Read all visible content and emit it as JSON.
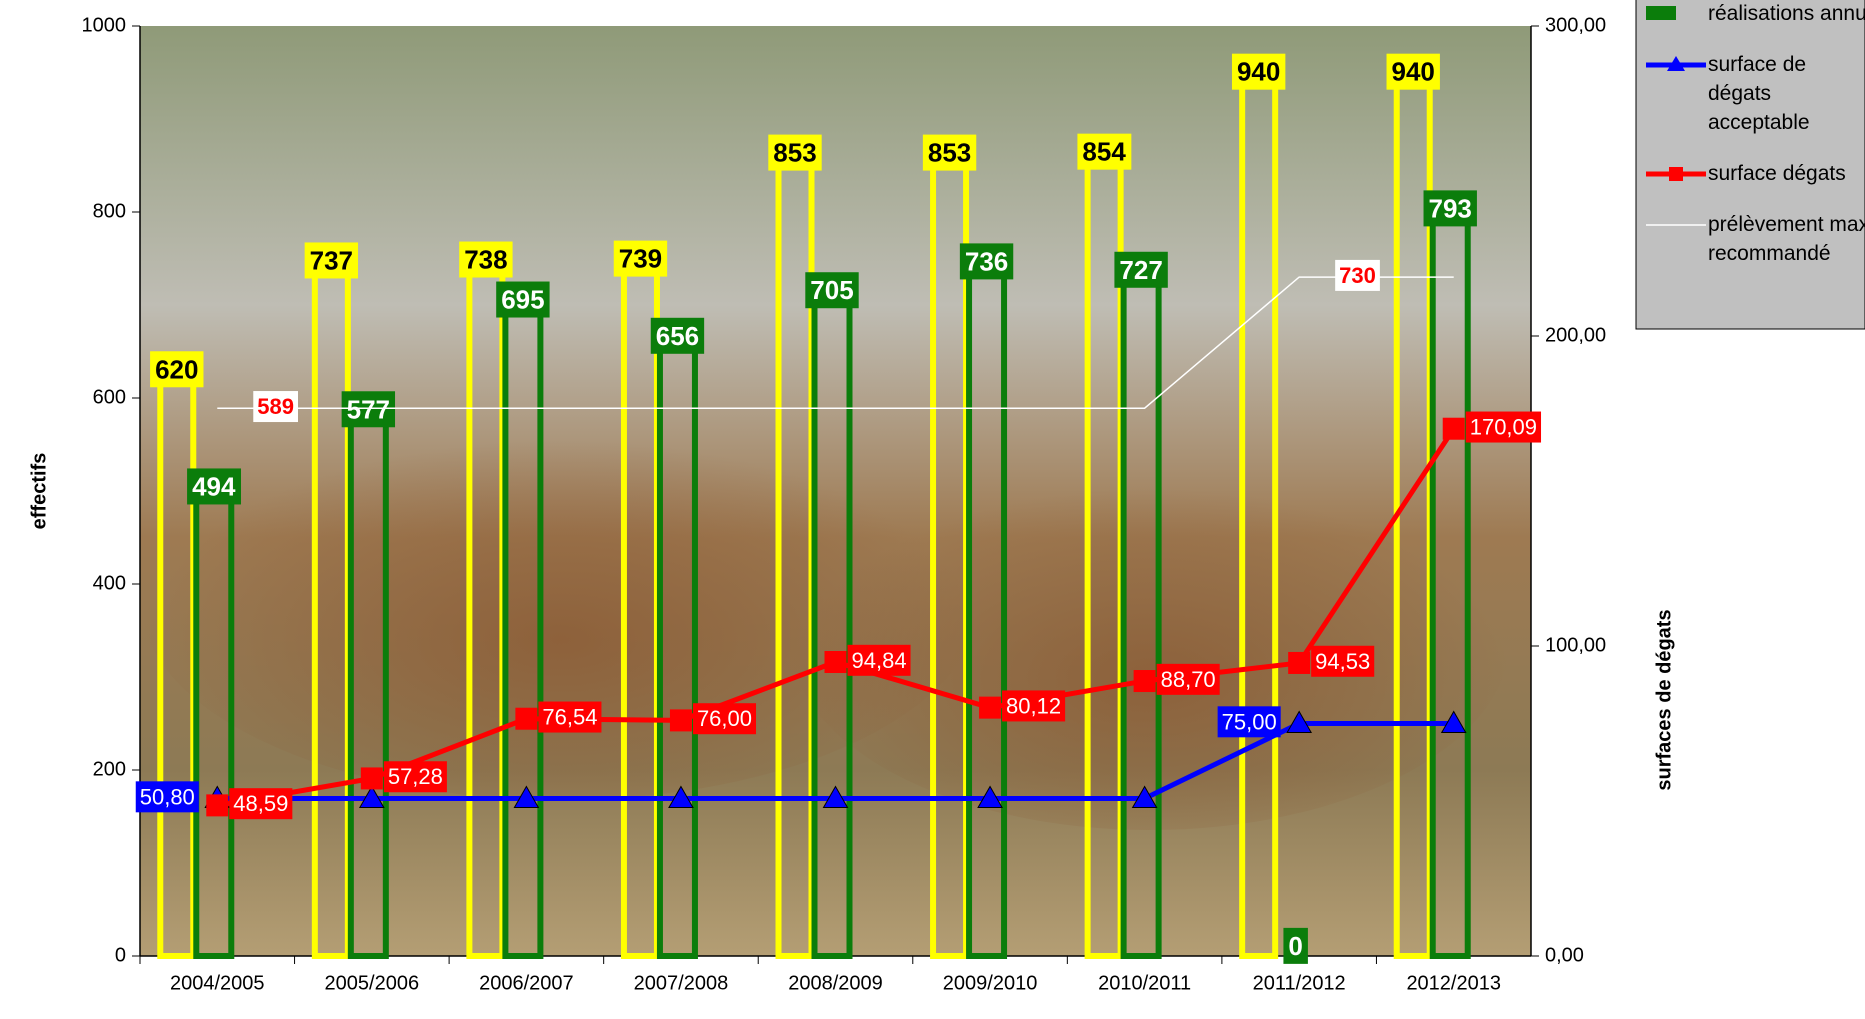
{
  "chart_data": {
    "type": "bar",
    "categories": [
      "2004/2005",
      "2005/2006",
      "2006/2007",
      "2007/2008",
      "2008/2009",
      "2009/2010",
      "2010/2011",
      "2011/2012",
      "2012/2013"
    ],
    "series": [
      {
        "color": "#ffff00",
        "values": [
          620,
          737,
          738,
          739,
          853,
          853,
          854,
          940,
          940
        ]
      },
      {
        "name": "réalisations annuelles",
        "color": "#0b7d0b",
        "values": [
          494,
          577,
          695,
          656,
          705,
          736,
          727,
          0,
          793
        ]
      },
      {
        "name": "surface de dégats acceptable",
        "color": "#0000ff",
        "type": "line",
        "axis": "y2",
        "marker": "triangle",
        "values": [
          50.8,
          50.8,
          50.8,
          50.8,
          50.8,
          50.8,
          50.8,
          75.0,
          75.0
        ],
        "value_labels": [
          "50,80",
          null,
          null,
          null,
          null,
          null,
          null,
          "75,00",
          null
        ]
      },
      {
        "name": "surface dégats",
        "color": "#ff0000",
        "type": "line",
        "axis": "y2",
        "marker": "square",
        "values": [
          48.59,
          57.28,
          76.54,
          76.0,
          94.84,
          80.12,
          88.7,
          94.53,
          170.09
        ],
        "value_labels": [
          "48,59",
          "57,28",
          "76,54",
          "76,00",
          "94,84",
          "80,12",
          "88,70",
          "94,53",
          "170,09"
        ]
      },
      {
        "name": "prélèvement maximum recommandé",
        "color": "#ffffff",
        "type": "line",
        "values": [
          589,
          589,
          589,
          589,
          589,
          589,
          589,
          730,
          730
        ],
        "value_labels": [
          "589",
          null,
          null,
          null,
          null,
          null,
          null,
          "730",
          null
        ]
      }
    ],
    "ylabel": "effectifs",
    "y2label": "surfaces de dégats",
    "ylim": [
      0,
      1000
    ],
    "yticks": [
      0,
      200,
      400,
      600,
      800,
      1000
    ],
    "y2lim": [
      0,
      300
    ],
    "y2ticks": [
      {
        "value": 0,
        "label": "0,00"
      },
      {
        "value": 100,
        "label": "100,00"
      },
      {
        "value": 200,
        "label": "200,00"
      },
      {
        "value": 300,
        "label": "300,00"
      }
    ],
    "legend": "top-right"
  }
}
